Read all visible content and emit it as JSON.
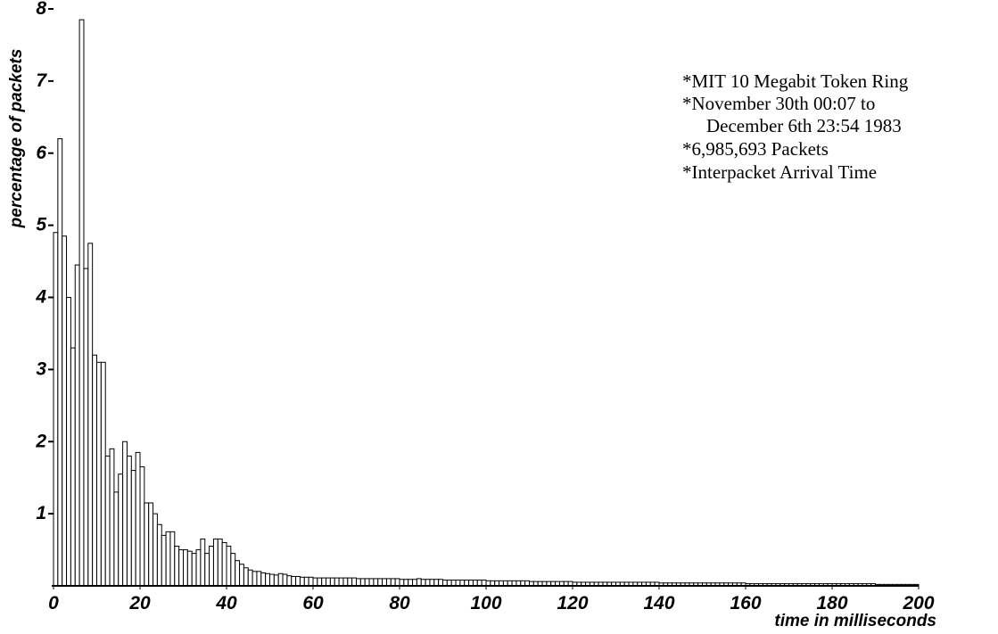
{
  "chart_data": {
    "type": "histogram",
    "ylabel": "percentage of packets",
    "xlabel": "time in milliseconds",
    "annotations": [
      "*MIT 10 Megabit Token Ring",
      "*November 30th 00:07 to",
      "December 6th 23:54 1983",
      "*6,985,693 Packets",
      "*Interpacket Arrival Time"
    ],
    "bins": [
      0,
      1,
      2,
      3,
      4,
      5,
      6,
      7,
      8,
      9,
      10,
      11,
      12,
      13,
      14,
      15,
      16,
      17,
      18,
      19,
      20,
      21,
      22,
      23,
      24,
      25,
      26,
      27,
      28,
      29,
      30,
      31,
      32,
      33,
      34,
      35,
      36,
      37,
      38,
      39,
      40,
      41,
      42,
      43,
      44,
      45,
      46,
      47,
      48,
      49,
      50,
      51,
      52,
      53,
      54,
      55,
      56,
      57,
      58,
      59,
      60,
      61,
      62,
      63,
      64,
      65,
      66,
      67,
      68,
      69,
      70,
      71,
      72,
      73,
      74,
      75,
      76,
      77,
      78,
      79,
      80,
      81,
      82,
      83,
      84,
      85,
      86,
      87,
      88,
      89,
      90,
      91,
      92,
      93,
      94,
      95,
      96,
      97,
      98,
      99,
      100,
      101,
      102,
      103,
      104,
      105,
      106,
      107,
      108,
      109,
      110,
      111,
      112,
      113,
      114,
      115,
      116,
      117,
      118,
      119,
      120,
      121,
      122,
      123,
      124,
      125,
      126,
      127,
      128,
      129,
      130,
      131,
      132,
      133,
      134,
      135,
      136,
      137,
      138,
      139,
      140,
      141,
      142,
      143,
      144,
      145,
      146,
      147,
      148,
      149,
      150,
      151,
      152,
      153,
      154,
      155,
      156,
      157,
      158,
      159,
      160,
      161,
      162,
      163,
      164,
      165,
      166,
      167,
      168,
      169,
      170,
      171,
      172,
      173,
      174,
      175,
      176,
      177,
      178,
      179,
      180,
      181,
      182,
      183,
      184,
      185,
      186,
      187,
      188,
      189,
      190,
      191,
      192,
      193,
      194,
      195,
      196,
      197,
      198,
      199,
      200
    ],
    "counts": [
      4.9,
      6.2,
      4.85,
      4.0,
      3.3,
      4.45,
      7.85,
      4.4,
      4.75,
      3.2,
      3.1,
      3.1,
      1.8,
      1.9,
      1.3,
      1.55,
      2.0,
      1.8,
      1.6,
      1.85,
      1.65,
      1.15,
      1.15,
      1.0,
      0.85,
      0.7,
      0.75,
      0.75,
      0.55,
      0.5,
      0.5,
      0.48,
      0.45,
      0.5,
      0.65,
      0.45,
      0.55,
      0.65,
      0.65,
      0.6,
      0.55,
      0.45,
      0.35,
      0.3,
      0.25,
      0.22,
      0.2,
      0.2,
      0.18,
      0.17,
      0.16,
      0.15,
      0.17,
      0.16,
      0.14,
      0.13,
      0.13,
      0.12,
      0.12,
      0.12,
      0.11,
      0.11,
      0.11,
      0.11,
      0.11,
      0.11,
      0.11,
      0.11,
      0.11,
      0.11,
      0.1,
      0.1,
      0.1,
      0.1,
      0.1,
      0.1,
      0.1,
      0.1,
      0.1,
      0.1,
      0.09,
      0.09,
      0.09,
      0.09,
      0.1,
      0.09,
      0.09,
      0.09,
      0.09,
      0.09,
      0.08,
      0.08,
      0.08,
      0.08,
      0.08,
      0.08,
      0.08,
      0.08,
      0.08,
      0.08,
      0.07,
      0.07,
      0.07,
      0.07,
      0.07,
      0.07,
      0.07,
      0.07,
      0.07,
      0.07,
      0.06,
      0.06,
      0.06,
      0.06,
      0.06,
      0.06,
      0.06,
      0.06,
      0.06,
      0.06,
      0.05,
      0.05,
      0.05,
      0.05,
      0.05,
      0.05,
      0.05,
      0.05,
      0.05,
      0.05,
      0.05,
      0.05,
      0.05,
      0.05,
      0.05,
      0.05,
      0.05,
      0.05,
      0.05,
      0.05,
      0.04,
      0.04,
      0.04,
      0.04,
      0.04,
      0.04,
      0.04,
      0.04,
      0.04,
      0.04,
      0.04,
      0.04,
      0.04,
      0.04,
      0.04,
      0.04,
      0.04,
      0.04,
      0.04,
      0.04,
      0.03,
      0.03,
      0.03,
      0.03,
      0.03,
      0.03,
      0.03,
      0.03,
      0.03,
      0.03,
      0.03,
      0.03,
      0.03,
      0.03,
      0.03,
      0.03,
      0.03,
      0.03,
      0.03,
      0.03,
      0.03,
      0.03,
      0.03,
      0.03,
      0.03,
      0.03,
      0.03,
      0.03,
      0.03,
      0.03,
      0.02,
      0.02,
      0.02,
      0.02,
      0.02,
      0.02,
      0.02,
      0.02,
      0.02,
      0.02
    ],
    "color": "#ffffff",
    "xlim": [
      0,
      200
    ],
    "ylim": [
      0,
      8
    ],
    "xticks": [
      0,
      20,
      40,
      60,
      80,
      100,
      120,
      140,
      160,
      180,
      200
    ],
    "yticks": [
      1,
      2,
      3,
      4,
      5,
      6,
      7,
      8
    ]
  }
}
